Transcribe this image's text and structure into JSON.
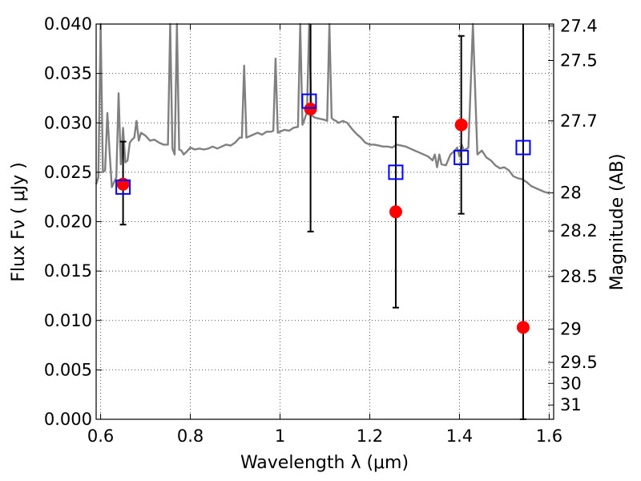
{
  "chart_data": {
    "type": "scatter",
    "title": "",
    "xlabel": "Wavelength  λ (μm)",
    "ylabel": "Flux  Fν  ( μJy )",
    "y2label": "Magnitude (AB)",
    "xlim": [
      0.59,
      1.61
    ],
    "ylim": [
      0.0,
      0.04
    ],
    "grid": true,
    "x_ticks": [
      0.6,
      0.8,
      1.0,
      1.2,
      1.4,
      1.6
    ],
    "x_tick_labels": [
      "0.6",
      "0.8",
      "1",
      "1.2",
      "1.4",
      "1.6"
    ],
    "y_ticks": [
      0.0,
      0.005,
      0.01,
      0.015,
      0.02,
      0.025,
      0.03,
      0.035,
      0.04
    ],
    "y_tick_labels": [
      "0.000",
      "0.005",
      "0.010",
      "0.015",
      "0.020",
      "0.025",
      "0.030",
      "0.035",
      "0.040"
    ],
    "y2_ticks": [
      27.4,
      27.5,
      27.7,
      28,
      28.2,
      28.5,
      29,
      29.5,
      30,
      31
    ],
    "y2_tick_labels": [
      "27.4",
      "27.5",
      "27.7",
      "28",
      "28.2",
      "28.5",
      "29",
      "29.5",
      "30",
      "31"
    ],
    "colors": {
      "spectrum": "#808080",
      "observed": "#ff0000",
      "model": "#0000ff",
      "errorbar": "#000000",
      "grid": "#555555"
    },
    "series": [
      {
        "kind": "spectrum",
        "x": [
          0.59,
          0.595,
          0.6,
          0.605,
          0.61,
          0.615,
          0.62,
          0.625,
          0.63,
          0.635,
          0.64,
          0.645,
          0.65,
          0.655,
          0.66,
          0.665,
          0.67,
          0.675,
          0.68,
          0.685,
          0.69,
          0.7,
          0.71,
          0.72,
          0.73,
          0.74,
          0.75,
          0.755,
          0.76,
          0.765,
          0.77,
          0.775,
          0.78,
          0.785,
          0.79,
          0.8,
          0.81,
          0.82,
          0.83,
          0.84,
          0.85,
          0.86,
          0.87,
          0.88,
          0.89,
          0.9,
          0.91,
          0.915,
          0.92,
          0.925,
          0.93,
          0.94,
          0.95,
          0.96,
          0.97,
          0.98,
          0.985,
          0.99,
          0.995,
          1.0,
          1.01,
          1.02,
          1.03,
          1.04,
          1.045,
          1.05,
          1.055,
          1.06,
          1.065,
          1.07,
          1.075,
          1.08,
          1.09,
          1.1,
          1.105,
          1.11,
          1.115,
          1.12,
          1.125,
          1.13,
          1.14,
          1.15,
          1.16,
          1.17,
          1.18,
          1.19,
          1.2,
          1.21,
          1.22,
          1.23,
          1.24,
          1.25,
          1.26,
          1.27,
          1.28,
          1.29,
          1.3,
          1.31,
          1.32,
          1.33,
          1.34,
          1.345,
          1.35,
          1.355,
          1.36,
          1.37,
          1.38,
          1.39,
          1.395,
          1.4,
          1.405,
          1.41,
          1.42,
          1.43,
          1.44,
          1.45,
          1.46,
          1.47,
          1.48,
          1.49,
          1.5,
          1.51,
          1.52,
          1.53,
          1.54,
          1.55,
          1.56,
          1.57,
          1.58,
          1.59,
          1.6
        ],
        "y": [
          0.0238,
          0.0245,
          0.04,
          0.025,
          0.0252,
          0.031,
          0.027,
          0.0235,
          0.024,
          0.0245,
          0.033,
          0.0258,
          0.0295,
          0.026,
          0.0262,
          0.028,
          0.0283,
          0.0285,
          0.0302,
          0.0282,
          0.029,
          0.0287,
          0.0282,
          0.0283,
          0.028,
          0.0278,
          0.0278,
          0.04,
          0.0274,
          0.0268,
          0.04,
          0.0273,
          0.0272,
          0.0268,
          0.027,
          0.0275,
          0.0273,
          0.0274,
          0.0273,
          0.0274,
          0.0276,
          0.0274,
          0.0276,
          0.0278,
          0.0277,
          0.028,
          0.0285,
          0.0285,
          0.0358,
          0.0285,
          0.0286,
          0.0288,
          0.029,
          0.0288,
          0.0291,
          0.0291,
          0.0292,
          0.0365,
          0.029,
          0.0291,
          0.0293,
          0.0292,
          0.0295,
          0.0296,
          0.04,
          0.0298,
          0.0304,
          0.0311,
          0.04,
          0.0308,
          0.0306,
          0.0305,
          0.0304,
          0.0303,
          0.0302,
          0.04,
          0.0305,
          0.0303,
          0.0302,
          0.03,
          0.0302,
          0.03,
          0.0294,
          0.0289,
          0.0285,
          0.028,
          0.0278,
          0.0278,
          0.0277,
          0.0276,
          0.0276,
          0.0275,
          0.0278,
          0.0277,
          0.0276,
          0.0274,
          0.0272,
          0.027,
          0.0268,
          0.0266,
          0.0262,
          0.0268,
          0.0255,
          0.0268,
          0.0258,
          0.0257,
          0.0268,
          0.0272,
          0.0275,
          0.0266,
          0.0278,
          0.0272,
          0.0275,
          0.04,
          0.0268,
          0.0272,
          0.0265,
          0.0262,
          0.0257,
          0.0254,
          0.0255,
          0.0252,
          0.0246,
          0.0244,
          0.0243,
          0.024,
          0.0236,
          0.0234,
          0.0232,
          0.023,
          0.0229
        ]
      },
      {
        "name": "",
        "kind": "observed",
        "marker": "circle",
        "x": [
          0.65,
          1.068,
          1.258,
          1.404,
          1.542
        ],
        "y": [
          0.0238,
          0.0314,
          0.021,
          0.0298,
          0.0093
        ],
        "yerr_low": [
          0.0197,
          0.019,
          0.0113,
          0.0208,
          0.0
        ],
        "yerr_high": [
          0.0281,
          0.0405,
          0.0306,
          0.0388,
          0.0405
        ]
      },
      {
        "name": "",
        "kind": "model",
        "marker": "square",
        "x": [
          0.65,
          1.065,
          1.258,
          1.404,
          1.542
        ],
        "y": [
          0.0235,
          0.0322,
          0.025,
          0.0265,
          0.0275
        ]
      }
    ]
  }
}
